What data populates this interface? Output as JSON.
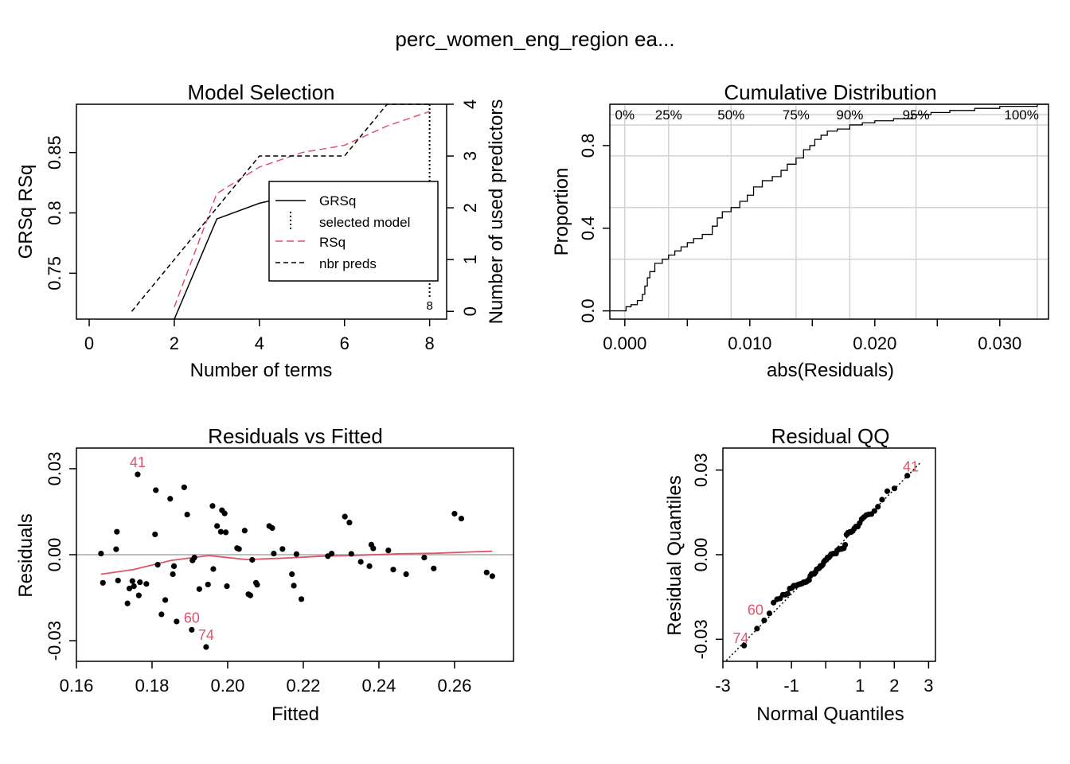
{
  "page": {
    "title": "perc_women_eng_region     ea..."
  },
  "colors": {
    "accent": "#DF536B",
    "ink": "#000000",
    "grid": "#D3D3D3"
  },
  "chart_data": [
    {
      "id": "model_selection",
      "type": "line",
      "title": "Model Selection",
      "xlabel": "Number of terms",
      "ylabel": "GRSq   RSq",
      "ylabel_right": "Number of used predictors",
      "xlim": [
        -0.3,
        8.4
      ],
      "ylim": [
        0.712,
        0.89
      ],
      "y2lim": [
        -0.15,
        4.0
      ],
      "xticks": [
        "0",
        "2",
        "4",
        "6",
        "8"
      ],
      "yticks": [
        "0.75",
        "0.8",
        "0.85"
      ],
      "y2ticks": [
        "0",
        "1",
        "2",
        "3",
        "4"
      ],
      "series": [
        {
          "name": "GRSq",
          "style": "solid",
          "color": "#000000",
          "x": [
            2,
            3,
            4,
            4.5
          ],
          "y": [
            0.712,
            0.795,
            0.808,
            0.812
          ]
        },
        {
          "name": "RSq",
          "style": "dashed",
          "color": "#DF536B",
          "x": [
            2,
            3,
            4,
            5,
            6,
            7,
            8
          ],
          "y": [
            0.722,
            0.816,
            0.838,
            0.85,
            0.856,
            0.872,
            0.884
          ]
        },
        {
          "name": "nbr preds",
          "style": "dashed",
          "color": "#000000",
          "axis": "right",
          "x": [
            1,
            2,
            3,
            4,
            5,
            6,
            7,
            8
          ],
          "y": [
            0,
            1,
            2,
            3,
            3,
            3,
            4,
            4
          ]
        }
      ],
      "selected_model": {
        "x": 8,
        "label": "8"
      },
      "legend": {
        "position": "center-right",
        "entries": [
          {
            "label": "GRSq",
            "style": "solid",
            "color": "#000000"
          },
          {
            "label": "selected model",
            "style": "dotted",
            "color": "#000000"
          },
          {
            "label": "RSq",
            "style": "dashed",
            "color": "#DF536B"
          },
          {
            "label": "nbr preds",
            "style": "dashed",
            "color": "#000000"
          }
        ]
      }
    },
    {
      "id": "cumulative_distribution",
      "type": "line",
      "title": "Cumulative Distribution",
      "xlabel": "abs(Residuals)",
      "ylabel": "Proportion",
      "xlim": [
        -0.0012,
        0.0339
      ],
      "ylim": [
        -0.04,
        1.0
      ],
      "xticks": [
        "0.000",
        "0.010",
        "0.020",
        "0.030"
      ],
      "yticks": [
        "0.0",
        "0.4",
        "0.8"
      ],
      "grid": true,
      "quantiles": [
        {
          "label": "0%",
          "x": 0.0
        },
        {
          "label": "25%",
          "x": 0.0035
        },
        {
          "label": "50%",
          "x": 0.0085
        },
        {
          "label": "75%",
          "x": 0.0137
        },
        {
          "label": "90%",
          "x": 0.018
        },
        {
          "label": "95%",
          "x": 0.0233
        },
        {
          "label": "100%",
          "x": 0.033
        }
      ],
      "hlines": [
        0.25,
        0.5,
        0.75,
        0.9,
        0.95,
        1.0
      ],
      "x": [
        0.0,
        0.0001,
        0.0005,
        0.001,
        0.0014,
        0.0016,
        0.0018,
        0.002,
        0.0024,
        0.003,
        0.0035,
        0.004,
        0.0045,
        0.005,
        0.0055,
        0.0062,
        0.007,
        0.0074,
        0.0078,
        0.0085,
        0.0092,
        0.0098,
        0.0103,
        0.011,
        0.0118,
        0.0125,
        0.013,
        0.0137,
        0.0143,
        0.0148,
        0.0152,
        0.0157,
        0.0162,
        0.017,
        0.018,
        0.019,
        0.02,
        0.0215,
        0.023,
        0.0245,
        0.026,
        0.028,
        0.03,
        0.033
      ],
      "y": [
        0.0,
        0.02,
        0.03,
        0.05,
        0.08,
        0.12,
        0.16,
        0.19,
        0.23,
        0.25,
        0.27,
        0.29,
        0.31,
        0.33,
        0.35,
        0.37,
        0.41,
        0.45,
        0.48,
        0.5,
        0.53,
        0.56,
        0.6,
        0.63,
        0.65,
        0.68,
        0.71,
        0.74,
        0.78,
        0.8,
        0.83,
        0.85,
        0.87,
        0.88,
        0.9,
        0.91,
        0.92,
        0.93,
        0.95,
        0.96,
        0.97,
        0.98,
        0.99,
        1.0
      ]
    },
    {
      "id": "residuals_vs_fitted",
      "type": "scatter",
      "title": "Residuals vs Fitted",
      "xlabel": "Fitted",
      "ylabel": "Residuals",
      "xlim": [
        0.16,
        0.2756
      ],
      "ylim": [
        -0.0372,
        0.0372
      ],
      "xticks": [
        "0.16",
        "0.18",
        "0.20",
        "0.22",
        "0.24",
        "0.26"
      ],
      "yticks": [
        "-0.03",
        "0.00",
        "0.03"
      ],
      "zero_line": 0,
      "points": [
        [
          0.1665,
          0.0004
        ],
        [
          0.167,
          -0.0098
        ],
        [
          0.1705,
          0.0019
        ],
        [
          0.1707,
          0.008
        ],
        [
          0.171,
          -0.009
        ],
        [
          0.1735,
          -0.017
        ],
        [
          0.174,
          -0.0118
        ],
        [
          0.1748,
          -0.0092
        ],
        [
          0.1752,
          -0.011
        ],
        [
          0.1762,
          0.028
        ],
        [
          0.1765,
          -0.0142
        ],
        [
          0.1768,
          -0.0096
        ],
        [
          0.1785,
          -0.0102
        ],
        [
          0.181,
          0.0225
        ],
        [
          0.1808,
          0.0071
        ],
        [
          0.1815,
          -0.0035
        ],
        [
          0.1825,
          -0.0208
        ],
        [
          0.1835,
          -0.0158
        ],
        [
          0.1848,
          0.0195
        ],
        [
          0.1855,
          -0.0068
        ],
        [
          0.1858,
          -0.004
        ],
        [
          0.1865,
          -0.0233
        ],
        [
          0.1885,
          0.0235
        ],
        [
          0.1893,
          0.014
        ],
        [
          0.1905,
          -0.0262
        ],
        [
          0.1907,
          -0.002
        ],
        [
          0.1912,
          -0.001
        ],
        [
          0.1925,
          -0.012
        ],
        [
          0.1943,
          -0.0322
        ],
        [
          0.1948,
          -0.0104
        ],
        [
          0.196,
          0.017
        ],
        [
          0.1962,
          -0.005
        ],
        [
          0.1972,
          0.01
        ],
        [
          0.1982,
          0.008
        ],
        [
          0.1985,
          0.0155
        ],
        [
          0.1992,
          0.0144
        ],
        [
          0.1995,
          0.0078
        ],
        [
          0.1998,
          -0.011
        ],
        [
          0.2025,
          0.0023
        ],
        [
          0.203,
          0.002
        ],
        [
          0.2045,
          0.0084
        ],
        [
          0.2055,
          -0.0138
        ],
        [
          0.206,
          -0.0142
        ],
        [
          0.2065,
          -0.0018
        ],
        [
          0.2075,
          -0.0098
        ],
        [
          0.2078,
          -0.0105
        ],
        [
          0.211,
          0.01
        ],
        [
          0.2118,
          0.0093
        ],
        [
          0.2122,
          0.0004
        ],
        [
          0.2145,
          0.002
        ],
        [
          0.217,
          -0.0068
        ],
        [
          0.2175,
          -0.0108
        ],
        [
          0.2182,
          0.0002
        ],
        [
          0.2195,
          -0.0155
        ],
        [
          0.2265,
          -0.0005
        ],
        [
          0.2275,
          0.0004
        ],
        [
          0.231,
          0.0133
        ],
        [
          0.2322,
          0.0112
        ],
        [
          0.2327,
          0.0003
        ],
        [
          0.2352,
          -0.0025
        ],
        [
          0.2375,
          -0.004
        ],
        [
          0.238,
          0.0035
        ],
        [
          0.2385,
          0.0022
        ],
        [
          0.2425,
          0.0015
        ],
        [
          0.2438,
          -0.0052
        ],
        [
          0.2472,
          -0.0068
        ],
        [
          0.252,
          -0.001
        ],
        [
          0.2545,
          -0.0048
        ],
        [
          0.26,
          0.0143
        ],
        [
          0.2618,
          0.0126
        ],
        [
          0.2685,
          -0.0062
        ],
        [
          0.27,
          -0.0075
        ]
      ],
      "smooth": {
        "color": "#DF536B",
        "x": [
          0.1665,
          0.175,
          0.185,
          0.195,
          0.205,
          0.215,
          0.225,
          0.235,
          0.245,
          0.255,
          0.265,
          0.27
        ],
        "y": [
          -0.0068,
          -0.0052,
          -0.002,
          -0.0003,
          -0.0017,
          -0.0012,
          -0.0005,
          -0.0002,
          0.0003,
          0.0005,
          0.001,
          0.0012
        ]
      },
      "labels": [
        {
          "text": "41",
          "x": 0.1762,
          "y": 0.028
        },
        {
          "text": "60",
          "x": 0.1905,
          "y": -0.0262
        },
        {
          "text": "74",
          "x": 0.1943,
          "y": -0.0322
        }
      ]
    },
    {
      "id": "residual_qq",
      "type": "scatter",
      "title": "Residual QQ",
      "xlabel": "Normal Quantiles",
      "ylabel": "Residual Quantiles",
      "xlim": [
        -3.0,
        3.2
      ],
      "ylim": [
        -0.0378,
        0.0378
      ],
      "xticks": [
        "-3",
        "-1",
        "1",
        "2",
        "3"
      ],
      "xtick_positions": [
        -3,
        -2,
        -1,
        0,
        1,
        2,
        3
      ],
      "yticks": [
        "-0.03",
        "0.00",
        "0.03"
      ],
      "line": {
        "style": "dotted",
        "x": [
          -2.9,
          2.75
        ],
        "y": [
          -0.0375,
          0.0325
        ]
      },
      "labels": [
        {
          "text": "41",
          "x": 2.48,
          "y": 0.0278
        },
        {
          "text": "60",
          "x": -2.05,
          "y": -0.023
        },
        {
          "text": "74",
          "x": -2.48,
          "y": -0.033
        }
      ]
    }
  ]
}
